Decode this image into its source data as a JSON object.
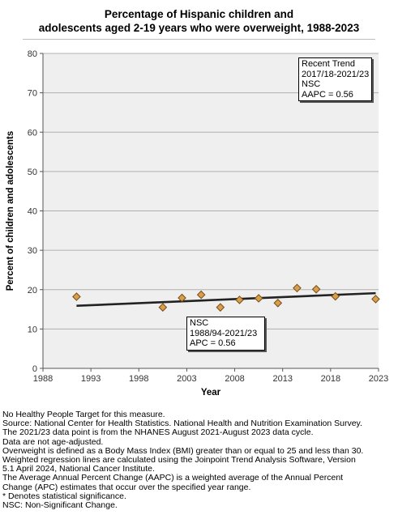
{
  "chart_data": {
    "type": "scatter",
    "title": "Percentage of Hispanic children and adolescents aged 2-19 years who were overweight, 1988-2023",
    "title_lines": [
      "Percentage of Hispanic children and",
      "adolescents aged 2-19 years who were overweight, 1988-2023"
    ],
    "xlabel": "Year",
    "ylabel": "Percent of children and adolescents",
    "xlim": [
      1988,
      2023
    ],
    "ylim": [
      0,
      80
    ],
    "xticks": [
      1988,
      1993,
      1998,
      2003,
      2008,
      2013,
      2018,
      2023
    ],
    "yticks": [
      0,
      10,
      20,
      30,
      40,
      50,
      60,
      70,
      80
    ],
    "grid": "horizontal",
    "points": [
      {
        "x": 1991.5,
        "y": 18.2
      },
      {
        "x": 2000.5,
        "y": 15.5
      },
      {
        "x": 2002.5,
        "y": 17.9
      },
      {
        "x": 2004.5,
        "y": 18.7
      },
      {
        "x": 2006.5,
        "y": 15.5
      },
      {
        "x": 2008.5,
        "y": 17.4
      },
      {
        "x": 2010.5,
        "y": 17.8
      },
      {
        "x": 2012.5,
        "y": 16.6
      },
      {
        "x": 2014.5,
        "y": 20.4
      },
      {
        "x": 2016.5,
        "y": 20.1
      },
      {
        "x": 2018.5,
        "y": 18.3
      },
      {
        "x": 2022.7,
        "y": 17.6
      }
    ],
    "trend_line": {
      "x": [
        1991.5,
        2022.7
      ],
      "y": [
        15.9,
        19.1
      ]
    },
    "marker_color": "#d4a04c",
    "marker_edge_color": "#7a4a14",
    "line_color": "#222222"
  },
  "annotations": {
    "recent": {
      "lines": [
        "Recent Trend",
        "2017/18-2021/23",
        "NSC",
        "AAPC =  0.56"
      ]
    },
    "overall": {
      "lines": [
        "NSC",
        "1988/94-2021/23",
        "APC =  0.56"
      ]
    }
  },
  "notes": [
    "No Healthy People Target for this measure.",
    "Source: National Center for Health Statistics. National Health and Nutrition Examination Survey.",
    "The 2021/23 data point is from the NHANES August 2021-August 2023 data cycle.",
    "Data are not age-adjusted.",
    "Overweight is defined as a Body Mass Index (BMI) greater than or equal to 25 and less than 30.",
    "Weighted regression lines are calculated using the Joinpoint Trend Analysis Software, Version",
    "5.1 April 2024, National Cancer Institute.",
    "The Average Annual Percent Change (AAPC) is a weighted average of the Annual Percent",
    "Change (APC) estimates that occur over the specified year range.",
    "* Denotes statistical significance.",
    "NSC: Non-Significant Change."
  ]
}
